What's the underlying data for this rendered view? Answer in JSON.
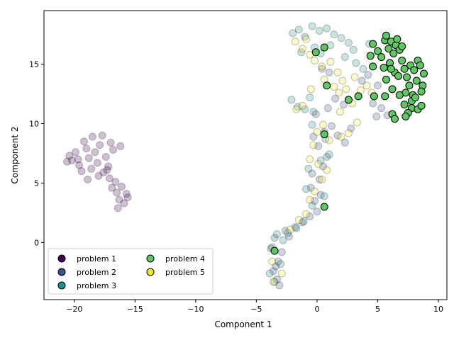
{
  "chart_data": {
    "type": "scatter",
    "xlabel": "Component 1",
    "ylabel": "Component 2",
    "xlim": [
      -22.5,
      10.7
    ],
    "ylim": [
      -4.8,
      19.5
    ],
    "x_ticks": [
      -20,
      -15,
      -10,
      -5,
      0,
      5,
      10
    ],
    "y_ticks": [
      0,
      5,
      10,
      15
    ],
    "x_tick_labels": [
      "−20",
      "−15",
      "−10",
      "−5",
      "0",
      "5",
      "10"
    ],
    "y_tick_labels": [
      "0",
      "5",
      "10",
      "15"
    ],
    "grid": false,
    "legend_position": "lower-left",
    "background_alpha": 0.25,
    "series": [
      {
        "name": "problem 1",
        "color": "#440154",
        "highlighted": false,
        "points": [
          [
            -20.4,
            7.3
          ],
          [
            -20.2,
            6.9
          ],
          [
            -19.9,
            7.6
          ],
          [
            -19.6,
            6.5
          ],
          [
            -19.2,
            8.5
          ],
          [
            -19.0,
            7.9
          ],
          [
            -18.8,
            7.1
          ],
          [
            -18.6,
            6.2
          ],
          [
            -18.5,
            8.9
          ],
          [
            -18.3,
            7.6
          ],
          [
            -18.1,
            6.7
          ],
          [
            -17.9,
            8.2
          ],
          [
            -17.6,
            5.9
          ],
          [
            -17.4,
            7.2
          ],
          [
            -17.2,
            6.4
          ],
          [
            -17.0,
            8.4
          ],
          [
            -16.8,
            7.8
          ],
          [
            -16.6,
            5.1
          ],
          [
            -16.5,
            4.2
          ],
          [
            -16.3,
            3.6
          ],
          [
            -16.1,
            4.7
          ],
          [
            -15.9,
            3.3
          ],
          [
            -15.7,
            4.1
          ],
          [
            -15.6,
            3.8
          ],
          [
            -16.4,
            2.9
          ],
          [
            -17.1,
            5.4
          ],
          [
            -18.0,
            5.6
          ],
          [
            -19.4,
            6.0
          ],
          [
            -20.6,
            6.8
          ],
          [
            -17.7,
            9.0
          ],
          [
            -16.2,
            8.1
          ],
          [
            -18.9,
            5.3
          ],
          [
            -19.7,
            7.0
          ],
          [
            -17.3,
            6.1
          ],
          [
            -16.9,
            4.6
          ]
        ]
      },
      {
        "name": "problem 2",
        "color": "#3b528b",
        "highlighted": false,
        "points": [
          [
            -3.6,
            -2.4
          ],
          [
            -3.3,
            -3.1
          ],
          [
            -3.1,
            -3.6
          ],
          [
            -3.4,
            -2.0
          ],
          [
            -2.9,
            -0.8
          ],
          [
            -3.2,
            -1.6
          ],
          [
            -3.8,
            -0.5
          ],
          [
            -3.5,
            0.4
          ],
          [
            -2.6,
            1.0
          ],
          [
            -2.3,
            0.5
          ],
          [
            -1.8,
            1.3
          ],
          [
            -1.2,
            1.7
          ],
          [
            -0.6,
            2.2
          ],
          [
            0.0,
            2.6
          ],
          [
            -0.2,
            3.5
          ],
          [
            0.3,
            4.0
          ],
          [
            -0.5,
            4.6
          ],
          [
            0.2,
            5.3
          ],
          [
            -0.4,
            5.8
          ],
          [
            0.5,
            6.4
          ],
          [
            0.8,
            7.2
          ],
          [
            0.1,
            8.1
          ],
          [
            -0.3,
            8.9
          ],
          [
            0.6,
            9.3
          ],
          [
            1.2,
            9.8
          ],
          [
            1.7,
            9.0
          ],
          [
            2.3,
            8.4
          ],
          [
            2.8,
            9.6
          ],
          [
            -0.1,
            10.8
          ],
          [
            0.9,
            11.3
          ],
          [
            1.5,
            12.1
          ],
          [
            2.2,
            11.6
          ],
          [
            4.6,
            11.7
          ],
          [
            5.3,
            11.3
          ],
          [
            5.8,
            10.7
          ],
          [
            4.9,
            10.6
          ],
          [
            3.7,
            13.6
          ],
          [
            4.2,
            14.1
          ],
          [
            5.0,
            13.2
          ],
          [
            0.4,
            14.6
          ],
          [
            1.0,
            14.3
          ]
        ]
      },
      {
        "name": "problem 3",
        "color": "#21918c",
        "highlighted": false,
        "points": [
          [
            -2.1,
            12.0
          ],
          [
            -1.6,
            11.4
          ],
          [
            -1.0,
            11.2
          ],
          [
            -0.6,
            12.2
          ],
          [
            -0.3,
            11.0
          ],
          [
            -2.0,
            17.6
          ],
          [
            -1.5,
            17.9
          ],
          [
            -1.0,
            17.3
          ],
          [
            -0.4,
            18.2
          ],
          [
            0.2,
            17.8
          ],
          [
            0.8,
            18.0
          ],
          [
            1.4,
            17.5
          ],
          [
            2.0,
            17.2
          ],
          [
            2.6,
            16.8
          ],
          [
            3.0,
            16.2
          ],
          [
            1.1,
            16.6
          ],
          [
            0.3,
            15.9
          ],
          [
            -0.2,
            16.4
          ],
          [
            -1.3,
            16.0
          ],
          [
            2.3,
            15.6
          ],
          [
            3.2,
            15.1
          ],
          [
            3.8,
            14.6
          ],
          [
            4.3,
            16.7
          ],
          [
            -0.4,
            9.9
          ],
          [
            0.7,
            8.7
          ],
          [
            1.0,
            7.4
          ],
          [
            -0.7,
            6.2
          ],
          [
            0.3,
            6.9
          ],
          [
            -0.9,
            4.5
          ],
          [
            0.6,
            3.9
          ],
          [
            -0.4,
            3.1
          ],
          [
            -1.1,
            1.8
          ],
          [
            -1.7,
            1.2
          ],
          [
            -2.4,
            0.8
          ],
          [
            -3.3,
            0.7
          ],
          [
            -3.7,
            -0.4
          ],
          [
            -3.0,
            -1.8
          ],
          [
            -3.9,
            -2.6
          ],
          [
            -3.5,
            -3.3
          ],
          [
            -2.8,
            0.2
          ]
        ]
      },
      {
        "name": "problem 4",
        "color": "#5ec962",
        "highlighted": true,
        "points": [
          [
            4.6,
            16.7
          ],
          [
            5.0,
            16.1
          ],
          [
            5.3,
            15.6
          ],
          [
            5.6,
            17.0
          ],
          [
            5.7,
            17.4
          ],
          [
            5.9,
            16.3
          ],
          [
            6.1,
            16.9
          ],
          [
            6.3,
            15.9
          ],
          [
            6.5,
            16.6
          ],
          [
            6.6,
            17.1
          ],
          [
            6.8,
            16.2
          ],
          [
            7.0,
            16.5
          ],
          [
            5.5,
            14.7
          ],
          [
            6.0,
            15.1
          ],
          [
            6.4,
            14.3
          ],
          [
            7.0,
            15.3
          ],
          [
            7.2,
            14.6
          ],
          [
            7.7,
            14.9
          ],
          [
            8.0,
            14.5
          ],
          [
            8.3,
            15.3
          ],
          [
            8.5,
            14.9
          ],
          [
            8.8,
            14.2
          ],
          [
            6.7,
            14.0
          ],
          [
            7.4,
            13.9
          ],
          [
            7.6,
            13.2
          ],
          [
            8.2,
            13.6
          ],
          [
            8.7,
            13.2
          ],
          [
            8.6,
            12.7
          ],
          [
            7.9,
            12.4
          ],
          [
            7.3,
            12.6
          ],
          [
            6.8,
            12.4
          ],
          [
            6.2,
            12.9
          ],
          [
            5.7,
            13.7
          ],
          [
            4.4,
            15.7
          ],
          [
            4.6,
            14.8
          ],
          [
            5.6,
            12.3
          ],
          [
            4.7,
            12.3
          ],
          [
            3.4,
            12.3
          ],
          [
            2.6,
            12.0
          ],
          [
            7.2,
            11.6
          ],
          [
            7.8,
            11.3
          ],
          [
            8.3,
            11.2
          ],
          [
            8.6,
            11.5
          ],
          [
            7.5,
            10.9
          ],
          [
            7.3,
            10.6
          ],
          [
            6.2,
            10.8
          ],
          [
            6.4,
            10.4
          ],
          [
            7.8,
            11.9
          ],
          [
            8.1,
            12.2
          ],
          [
            6.1,
            14.6
          ],
          [
            0.6,
            16.4
          ],
          [
            -0.1,
            16.0
          ],
          [
            0.8,
            13.2
          ],
          [
            0.6,
            9.1
          ],
          [
            0.6,
            3.0
          ],
          [
            -3.5,
            -0.7
          ]
        ]
      },
      {
        "name": "problem 5",
        "color": "#fde725",
        "highlighted": false,
        "points": [
          [
            -1.8,
            16.9
          ],
          [
            -1.2,
            16.3
          ],
          [
            -0.6,
            15.8
          ],
          [
            -0.9,
            17.1
          ],
          [
            -0.2,
            15.3
          ],
          [
            0.4,
            14.8
          ],
          [
            1.1,
            15.2
          ],
          [
            1.7,
            14.3
          ],
          [
            2.1,
            13.6
          ],
          [
            1.4,
            13.1
          ],
          [
            0.6,
            13.7
          ],
          [
            -0.5,
            12.9
          ],
          [
            -1.7,
            11.2
          ],
          [
            -1.2,
            11.5
          ],
          [
            1.8,
            12.6
          ],
          [
            2.4,
            12.9
          ],
          [
            3.1,
            13.9
          ],
          [
            3.6,
            12.8
          ],
          [
            2.9,
            11.7
          ],
          [
            3.3,
            10.1
          ],
          [
            1.9,
            11.0
          ],
          [
            4.1,
            13.2
          ],
          [
            4.5,
            12.6
          ],
          [
            0.0,
            9.3
          ],
          [
            0.5,
            9.9
          ],
          [
            1.0,
            8.6
          ],
          [
            2.0,
            8.9
          ],
          [
            2.6,
            9.2
          ],
          [
            -0.3,
            8.2
          ],
          [
            0.1,
            6.6
          ],
          [
            0.8,
            6.1
          ],
          [
            -0.6,
            7.0
          ],
          [
            -0.2,
            4.3
          ],
          [
            0.4,
            5.3
          ],
          [
            -0.6,
            3.6
          ],
          [
            -1.5,
            1.9
          ],
          [
            -0.9,
            2.4
          ],
          [
            -2.2,
            1.1
          ],
          [
            -3.7,
            -1.6
          ],
          [
            -3.6,
            -3.3
          ],
          [
            -2.9,
            -2.6
          ]
        ]
      }
    ]
  }
}
